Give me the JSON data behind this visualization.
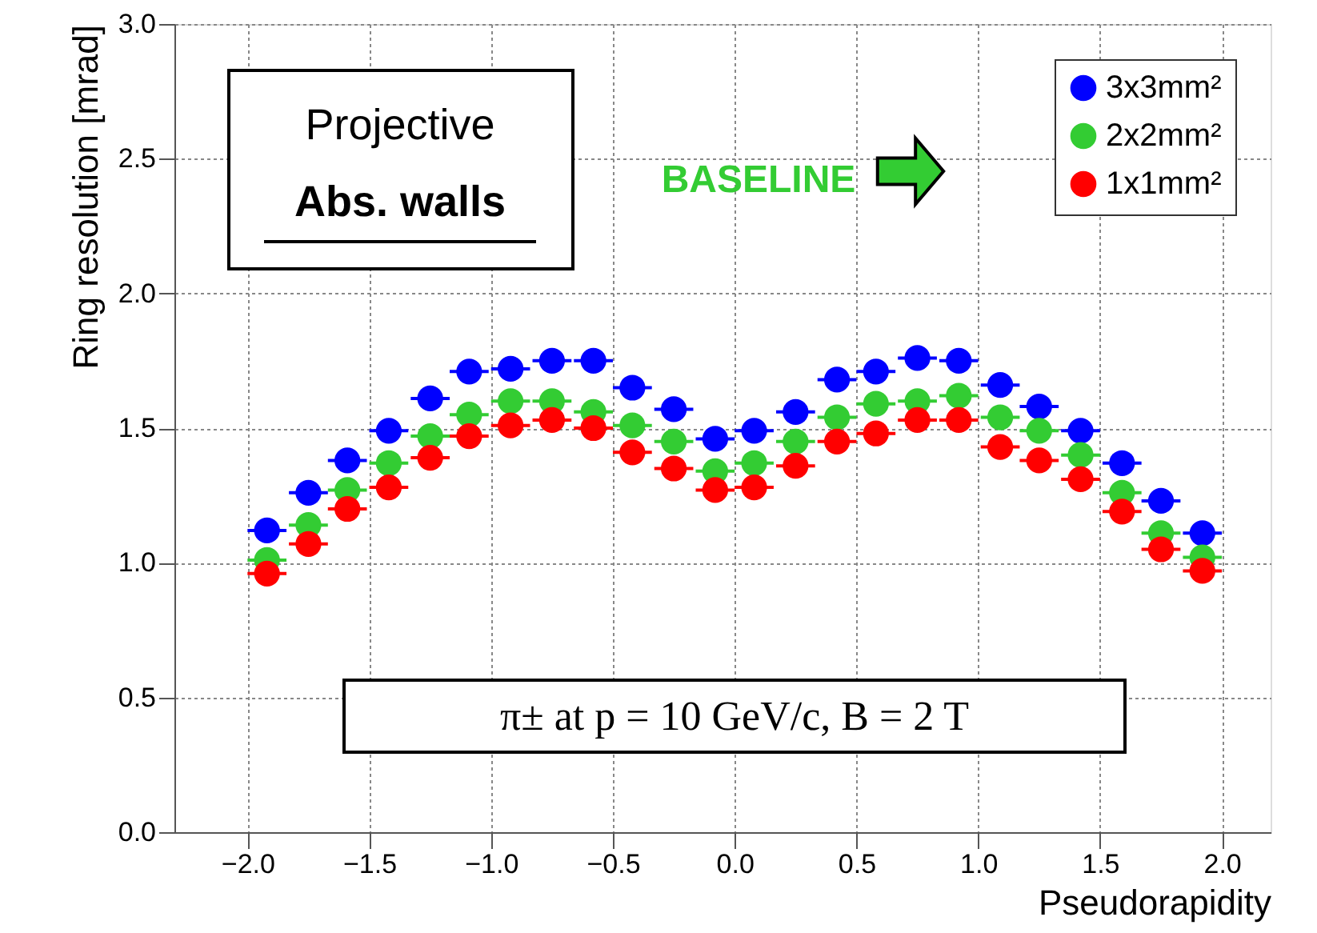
{
  "chart_data": {
    "type": "scatter",
    "xlabel": "Pseudorapidity",
    "ylabel": "Ring resolution [mrad]",
    "annotations": [
      "Projective",
      "Abs. walls",
      "BASELINE",
      "π± at p = 10 GeV/c, B = 2 T"
    ],
    "x": [
      -1.92,
      -1.75,
      -1.59,
      -1.42,
      -1.25,
      -1.09,
      -0.92,
      -0.75,
      -0.58,
      -0.42,
      -0.25,
      -0.08,
      0.08,
      0.25,
      0.42,
      0.58,
      0.75,
      0.92,
      1.09,
      1.25,
      1.42,
      1.59,
      1.75,
      1.92
    ],
    "series": [
      {
        "name": "3x3mm²",
        "color": "#0000ff",
        "values": [
          1.12,
          1.26,
          1.38,
          1.49,
          1.61,
          1.71,
          1.72,
          1.75,
          1.75,
          1.65,
          1.57,
          1.46,
          1.49,
          1.56,
          1.68,
          1.71,
          1.76,
          1.75,
          1.66,
          1.58,
          1.49,
          1.37,
          1.23,
          1.11
        ],
        "xerrors": [
          0.08,
          0.08,
          0.08,
          0.08,
          0.08,
          0.08,
          0.08,
          0.08,
          0.08,
          0.08,
          0.08,
          0.08,
          0.08,
          0.08,
          0.08,
          0.08,
          0.08,
          0.08,
          0.08,
          0.08,
          0.08,
          0.08,
          0.08,
          0.08
        ]
      },
      {
        "name": "2x2mm²",
        "color": "#33cc33",
        "values": [
          1.01,
          1.14,
          1.27,
          1.37,
          1.47,
          1.55,
          1.6,
          1.6,
          1.56,
          1.51,
          1.45,
          1.34,
          1.37,
          1.45,
          1.54,
          1.59,
          1.6,
          1.62,
          1.54,
          1.49,
          1.4,
          1.26,
          1.11,
          1.02
        ],
        "xerrors": [
          0.08,
          0.08,
          0.08,
          0.08,
          0.08,
          0.08,
          0.08,
          0.08,
          0.08,
          0.08,
          0.08,
          0.08,
          0.08,
          0.08,
          0.08,
          0.08,
          0.08,
          0.08,
          0.08,
          0.08,
          0.08,
          0.08,
          0.08,
          0.08
        ]
      },
      {
        "name": "1x1mm²",
        "color": "#ff0000",
        "values": [
          0.96,
          1.07,
          1.2,
          1.28,
          1.39,
          1.47,
          1.51,
          1.53,
          1.5,
          1.41,
          1.35,
          1.27,
          1.28,
          1.36,
          1.45,
          1.48,
          1.53,
          1.53,
          1.43,
          1.38,
          1.31,
          1.19,
          1.05,
          0.97
        ],
        "xerrors": [
          0.08,
          0.08,
          0.08,
          0.08,
          0.08,
          0.08,
          0.08,
          0.08,
          0.08,
          0.08,
          0.08,
          0.08,
          0.08,
          0.08,
          0.08,
          0.08,
          0.08,
          0.08,
          0.08,
          0.08,
          0.08,
          0.08,
          0.08,
          0.08
        ]
      }
    ],
    "xlim": [
      -2.3,
      2.2
    ],
    "ylim": [
      0,
      3
    ],
    "xticks": [
      {
        "value": -2,
        "label": "−2.0"
      },
      -1.5,
      {
        "value": -1,
        "label": "−1.0"
      },
      -0.5,
      {
        "value": 0,
        "label": "0.0"
      },
      0.5,
      {
        "value": 1,
        "label": "1.0"
      },
      1.5,
      {
        "value": 2,
        "label": "2.0"
      }
    ],
    "yticks": [
      {
        "value": 0,
        "label": "0.0"
      },
      0.5,
      {
        "value": 1,
        "label": "1.0"
      },
      1.5,
      {
        "value": 2,
        "label": "2.0"
      },
      2.5,
      {
        "value": 3,
        "label": "3.0"
      }
    ],
    "grid": true,
    "legend": "top right",
    "marker": "circle"
  }
}
